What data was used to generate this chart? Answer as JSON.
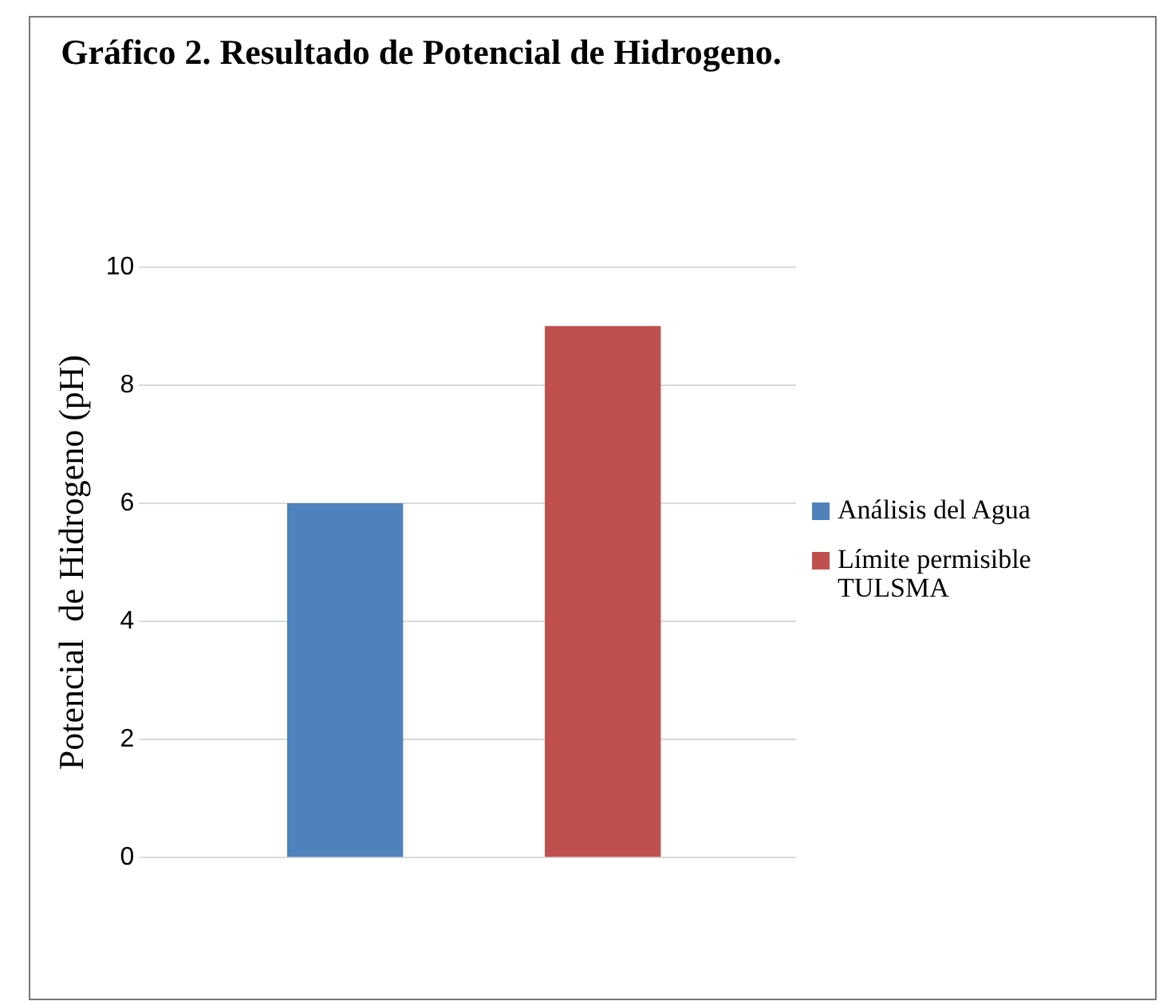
{
  "chart_data": {
    "type": "bar",
    "title": "Gráfico 2. Resultado de Potencial de Hidrogeno.",
    "ylabel": "Potencial  de Hidrogeno (pH)",
    "categories": [
      null
    ],
    "series": [
      {
        "name": "Análisis del Agua",
        "color": "#4f81bd",
        "values": [
          6
        ]
      },
      {
        "name": "Límite permisible TULSMA",
        "color": "#c0504d",
        "values": [
          9
        ]
      }
    ],
    "ylim": [
      0,
      10
    ],
    "yticks": [
      0,
      2,
      4,
      6,
      8,
      10
    ],
    "grid": "y",
    "legend": "right"
  }
}
